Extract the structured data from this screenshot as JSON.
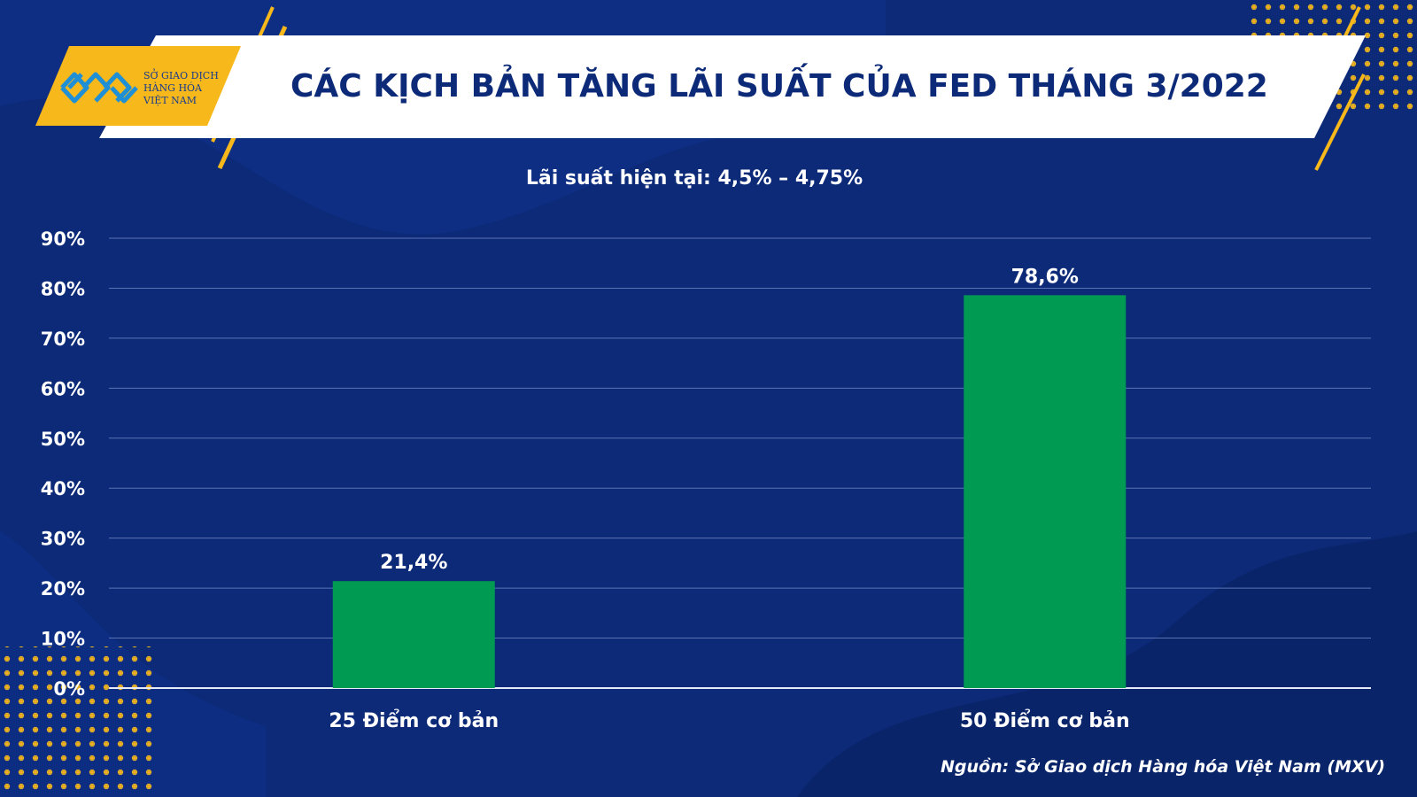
{
  "logo": {
    "name_lines": [
      "SỞ GIAO DỊCH",
      "HÀNG HÓA",
      "VIỆT NAM"
    ]
  },
  "header": {
    "title": "CÁC KỊCH BẢN TĂNG LÃI SUẤT CỦA FED THÁNG 3/2022"
  },
  "footer": {
    "source": "Nguồn: Sở Giao dịch Hàng hóa Việt Nam (MXV)"
  },
  "colors": {
    "background": "#0c2a78",
    "bar": "#009a52",
    "accent": "#f7b81c",
    "gridline": "#5a73b4"
  },
  "chart_data": {
    "type": "bar",
    "title": "CÁC KỊCH BẢN TĂNG LÃI SUẤT CỦA FED THÁNG 3/2022",
    "subtitle": "Lãi suất hiện tại: 4,5% – 4,75%",
    "categories": [
      "25 Điểm cơ bản",
      "50 Điểm cơ bản"
    ],
    "values": [
      21.4,
      78.6
    ],
    "data_labels": [
      "21,4%",
      "78,6%"
    ],
    "ylim": [
      0,
      90
    ],
    "yticks": [
      0,
      10,
      20,
      30,
      40,
      50,
      60,
      70,
      80,
      90
    ],
    "ytick_labels": [
      "0%",
      "10%",
      "20%",
      "30%",
      "40%",
      "50%",
      "60%",
      "70%",
      "80%",
      "90%"
    ],
    "grid": true,
    "legend": "none",
    "xlabel": "",
    "ylabel": ""
  }
}
